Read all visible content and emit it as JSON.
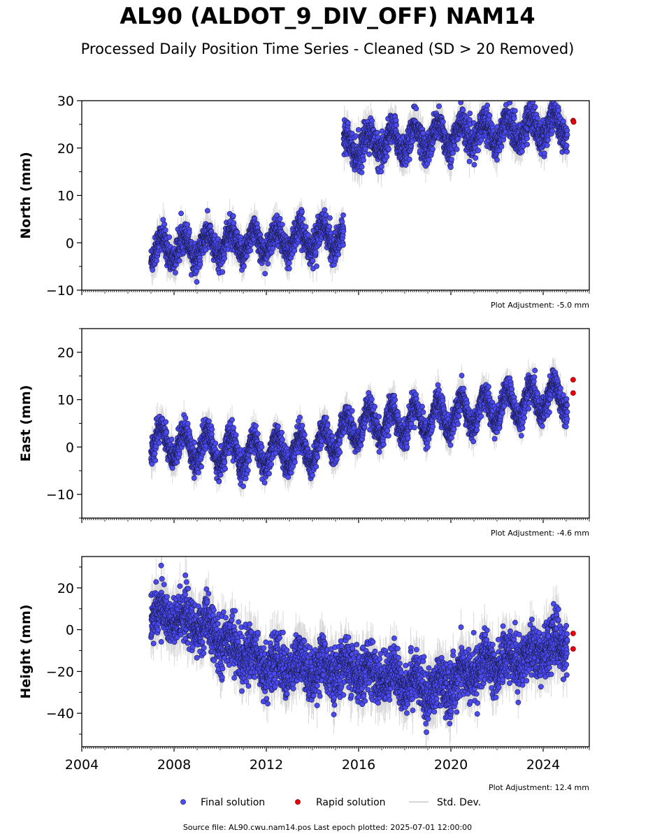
{
  "title": "AL90 (ALDOT_9_DIV_OFF) NAM14",
  "subtitle": "Processed Daily Position Time Series - Cleaned (SD > 20 Removed)",
  "footer": "Source file: AL90.cwu.nam14.pos  Last epoch plotted: 2025-07-01 12:00:00",
  "legend": {
    "final": "Final solution",
    "rapid": "Rapid solution",
    "std": "Std. Dev."
  },
  "colors": {
    "final": "#4a4af0",
    "rapid": "#e8000b",
    "std": "#c8c8c8"
  },
  "chart_data": [
    {
      "type": "scatter",
      "ylabel": "North (mm)",
      "adjustment": "Plot Adjustment: -5.0 mm",
      "ylim": [
        -10,
        30
      ],
      "yticks": [
        -10,
        0,
        10,
        20,
        30
      ],
      "xlim": [
        2004,
        2026
      ],
      "xticks": [],
      "segments": [
        {
          "start": 2007.0,
          "end": 2015.35,
          "base": -1.5,
          "slope": 0.35,
          "amp": 2.5,
          "noise": 1.5
        },
        {
          "start": 2015.35,
          "end": 2025.05,
          "base": 20.5,
          "slope": 0.45,
          "amp": 2.5,
          "noise": 1.6
        }
      ],
      "rapid": [
        [
          2025.3,
          25.8
        ],
        [
          2025.32,
          25.5
        ]
      ]
    },
    {
      "type": "scatter",
      "ylabel": "East (mm)",
      "adjustment": "Plot Adjustment: -4.6 mm",
      "ylim": [
        -15,
        25
      ],
      "yticks": [
        -10,
        0,
        10,
        20
      ],
      "xlim": [
        2004,
        2026
      ],
      "xticks": [],
      "segments": [
        {
          "start": 2007.0,
          "end": 2025.05,
          "base": 2.0,
          "slope": 0.45,
          "amp": 3.2,
          "noise": 1.4
        }
      ],
      "trend_points": [
        [
          2007,
          1.5
        ],
        [
          2011,
          -1.5
        ],
        [
          2014,
          -0.5
        ],
        [
          2016,
          4.5
        ],
        [
          2020,
          6.5
        ],
        [
          2025,
          11
        ]
      ],
      "rapid": [
        [
          2025.3,
          14.2
        ],
        [
          2025.3,
          11.4
        ]
      ]
    },
    {
      "type": "scatter",
      "ylabel": "Height (mm)",
      "adjustment": "Plot Adjustment: 12.4 mm",
      "ylim": [
        -56,
        35
      ],
      "yticks": [
        -40,
        -20,
        0,
        20
      ],
      "xlim": [
        2004,
        2026
      ],
      "xticks": [
        2004,
        2008,
        2012,
        2016,
        2020,
        2024
      ],
      "segments": [
        {
          "start": 2007.0,
          "end": 2025.05,
          "base": 0,
          "slope": 0,
          "amp": 4,
          "noise": 6
        }
      ],
      "trend_points": [
        [
          2007,
          8
        ],
        [
          2009,
          3
        ],
        [
          2010.5,
          -8
        ],
        [
          2012,
          -17
        ],
        [
          2016,
          -20
        ],
        [
          2018,
          -24
        ],
        [
          2019.3,
          -30
        ],
        [
          2021,
          -19
        ],
        [
          2023,
          -13
        ],
        [
          2025,
          -6
        ]
      ],
      "rapid": [
        [
          2025.3,
          -1.8
        ],
        [
          2025.3,
          -9.2
        ]
      ]
    }
  ]
}
